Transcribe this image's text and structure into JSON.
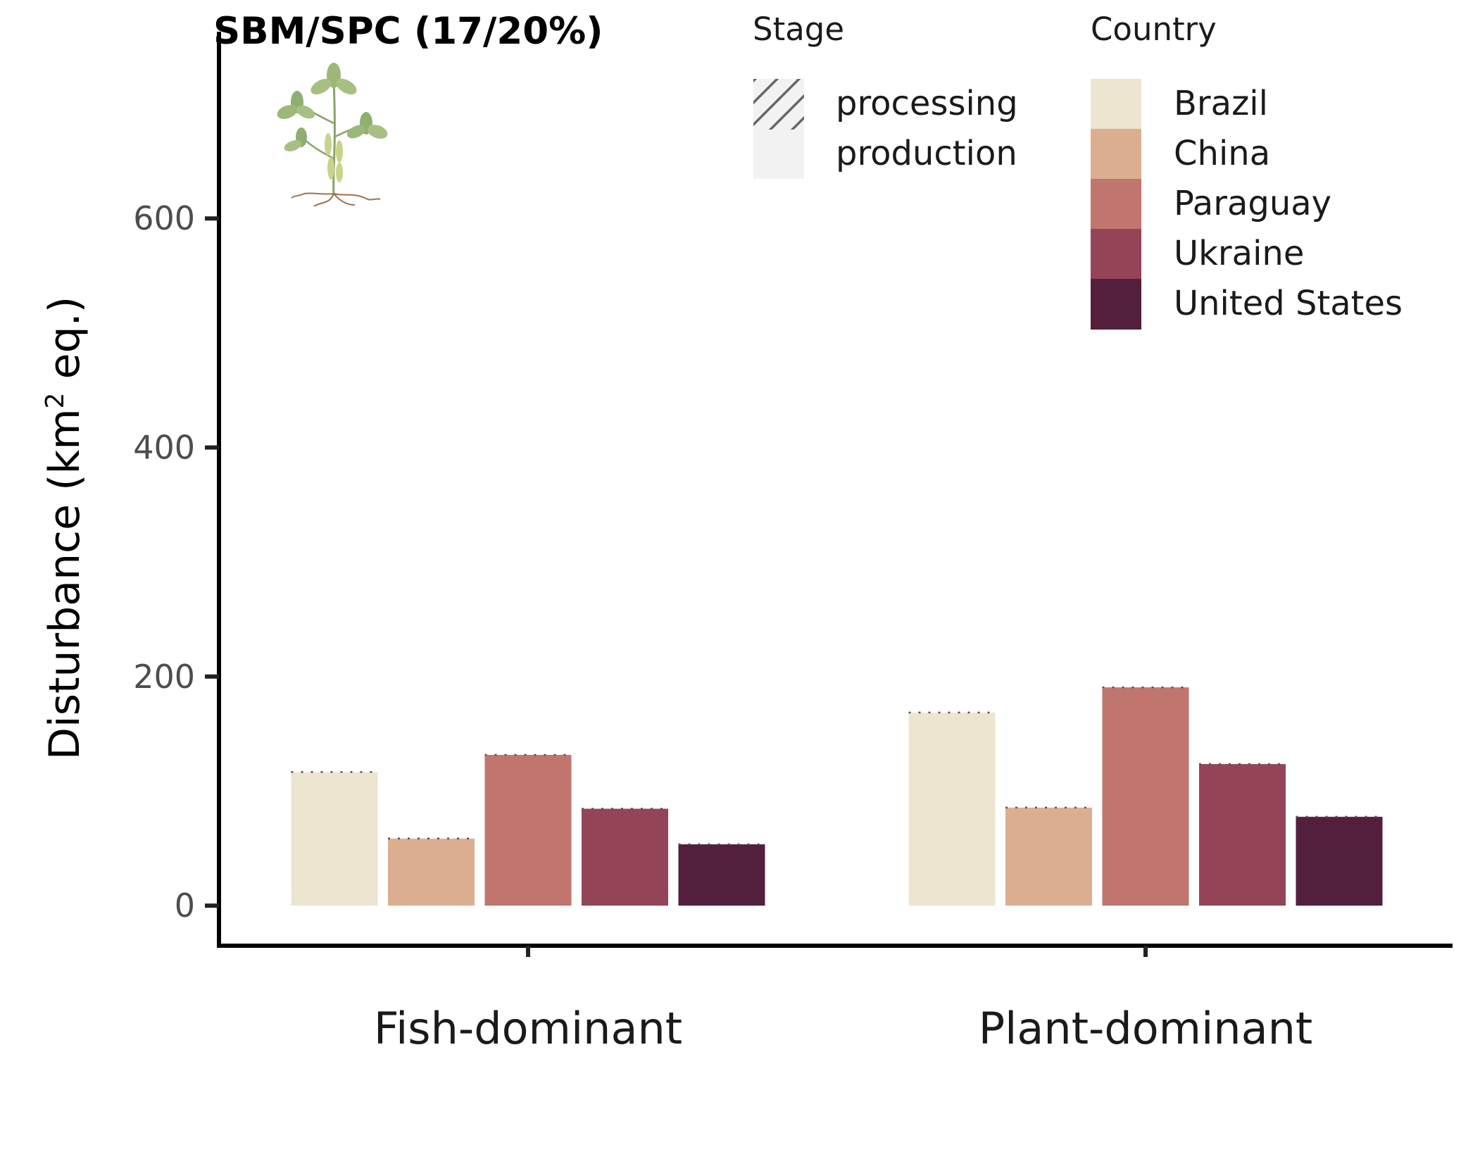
{
  "chart_data": {
    "type": "bar",
    "title": "SBM/SPC (17/20%)",
    "ylabel_main": "Disturbance (km",
    "ylabel_sup": "2",
    "ylabel_tail": " eq.)",
    "xlabel": "",
    "ylim": [
      -35,
      760
    ],
    "yticks": [
      0,
      200,
      400,
      600
    ],
    "categories": [
      "Fish-dominant",
      "Plant-dominant"
    ],
    "series": [
      {
        "name": "Brazil",
        "color": "#EDE5D0",
        "production": [
          116,
          168
        ],
        "processing": [
          0.6,
          0.6
        ]
      },
      {
        "name": "China",
        "color": "#DBAE90",
        "production": [
          58,
          85
        ],
        "processing": [
          0.6,
          0.6
        ]
      },
      {
        "name": "Paraguay",
        "color": "#C0756E",
        "production": [
          131,
          190
        ],
        "processing": [
          0.6,
          0.6
        ]
      },
      {
        "name": "Ukraine",
        "color": "#934457",
        "production": [
          84,
          123
        ],
        "processing": [
          0.6,
          0.6
        ]
      },
      {
        "name": "United States",
        "color": "#541E3D",
        "production": [
          53,
          77
        ],
        "processing": [
          0.6,
          0.6
        ]
      }
    ],
    "legend_stage": {
      "title": "Stage",
      "items": [
        {
          "label": "processing",
          "icon": "hatch-pattern-icon"
        },
        {
          "label": "production",
          "icon": "solid-fill-icon"
        }
      ]
    },
    "legend_country": {
      "title": "Country",
      "items": [
        "Brazil",
        "China",
        "Paraguay",
        "Ukraine",
        "United States"
      ]
    },
    "grid": false,
    "legend_placement": "top-right",
    "icon": "soybean-plant-icon"
  }
}
